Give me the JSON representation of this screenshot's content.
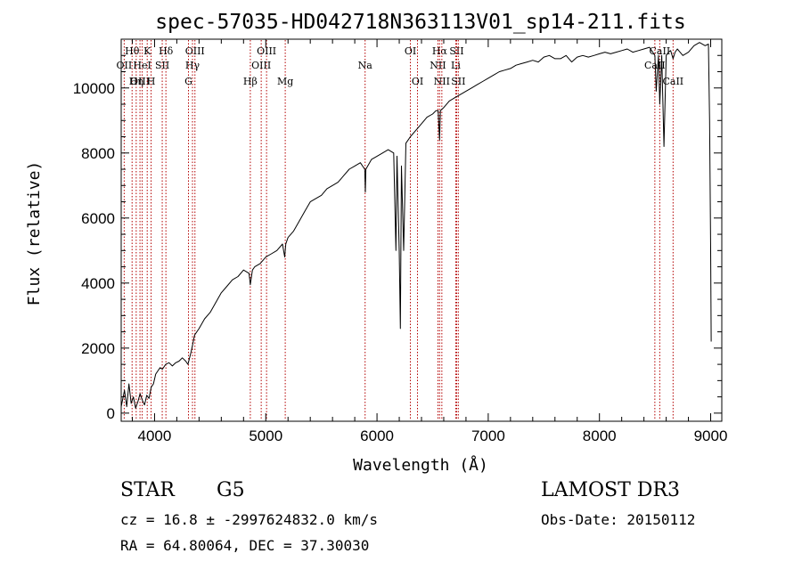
{
  "chart_data": {
    "type": "line",
    "title": "spec-57035-HD042718N363113V01_sp14-211.fits",
    "xlabel": "Wavelength (Å)",
    "ylabel": "Flux (relative)",
    "xlim": [
      3700,
      9100
    ],
    "ylim": [
      -250,
      11500
    ],
    "xticks": [
      4000,
      5000,
      6000,
      7000,
      8000,
      9000
    ],
    "yticks": [
      0,
      2000,
      4000,
      6000,
      8000,
      10000
    ],
    "grid": false,
    "series": [
      {
        "name": "spectrum",
        "x": [
          3700,
          3730,
          3750,
          3770,
          3790,
          3810,
          3830,
          3850,
          3870,
          3890,
          3910,
          3930,
          3950,
          3970,
          3990,
          4010,
          4030,
          4050,
          4070,
          4100,
          4130,
          4160,
          4190,
          4220,
          4250,
          4280,
          4300,
          4330,
          4360,
          4400,
          4450,
          4500,
          4550,
          4600,
          4650,
          4700,
          4750,
          4800,
          4850,
          4861,
          4880,
          4900,
          4950,
          5000,
          5050,
          5100,
          5150,
          5170,
          5180,
          5200,
          5250,
          5300,
          5350,
          5400,
          5450,
          5500,
          5550,
          5600,
          5650,
          5700,
          5750,
          5800,
          5850,
          5890,
          5895,
          5900,
          5950,
          6000,
          6050,
          6100,
          6150,
          6170,
          6180,
          6200,
          6210,
          6220,
          6240,
          6260,
          6280,
          6300,
          6350,
          6400,
          6450,
          6500,
          6530,
          6550,
          6563,
          6570,
          6600,
          6650,
          6700,
          6750,
          6800,
          6850,
          6900,
          6950,
          7000,
          7050,
          7100,
          7150,
          7200,
          7250,
          7300,
          7350,
          7400,
          7450,
          7500,
          7550,
          7600,
          7650,
          7700,
          7750,
          7800,
          7850,
          7900,
          7950,
          8000,
          8050,
          8100,
          8150,
          8200,
          8250,
          8300,
          8350,
          8400,
          8450,
          8498,
          8510,
          8530,
          8542,
          8560,
          8580,
          8600,
          8620,
          8640,
          8662,
          8680,
          8700,
          8750,
          8800,
          8850,
          8900,
          8950,
          8980,
          8990,
          9000,
          9005
        ],
        "y": [
          200,
          700,
          200,
          900,
          300,
          500,
          150,
          350,
          600,
          400,
          250,
          550,
          450,
          800,
          900,
          1200,
          1300,
          1400,
          1350,
          1500,
          1550,
          1450,
          1550,
          1600,
          1700,
          1600,
          1500,
          1900,
          2400,
          2600,
          2900,
          3100,
          3400,
          3700,
          3900,
          4100,
          4200,
          4400,
          4300,
          3950,
          4400,
          4500,
          4600,
          4800,
          4900,
          5000,
          5200,
          4800,
          5200,
          5400,
          5600,
          5900,
          6200,
          6500,
          6600,
          6700,
          6900,
          7000,
          7100,
          7300,
          7500,
          7600,
          7700,
          7500,
          6800,
          7500,
          7800,
          7900,
          8000,
          8100,
          8000,
          5000,
          7900,
          5000,
          2600,
          7600,
          5000,
          8300,
          8400,
          8500,
          8700,
          8900,
          9100,
          9200,
          9300,
          9300,
          8400,
          9300,
          9400,
          9600,
          9700,
          9800,
          9900,
          10000,
          10100,
          10200,
          10300,
          10400,
          10500,
          10550,
          10600,
          10700,
          10750,
          10800,
          10850,
          10800,
          10950,
          11000,
          10900,
          10900,
          11000,
          10800,
          10950,
          11000,
          10950,
          11000,
          11050,
          11100,
          11050,
          11100,
          11150,
          11200,
          11100,
          11150,
          11200,
          11250,
          11000,
          9900,
          11000,
          9500,
          11000,
          8200,
          11000,
          11100,
          11150,
          10900,
          11100,
          11200,
          11000,
          11100,
          11300,
          11400,
          11300,
          11350,
          9000,
          5000,
          2200
        ]
      }
    ],
    "line_markers": [
      {
        "name": "Hθ",
        "w": 3798,
        "row": 1
      },
      {
        "name": "OII",
        "w": 3727,
        "row": 2
      },
      {
        "name": "OIII",
        "w": 3869,
        "row": 3
      },
      {
        "name": "K",
        "w": 3934,
        "row": 1
      },
      {
        "name": "HeI",
        "w": 3889,
        "row": 2
      },
      {
        "name": "Hη",
        "w": 3835,
        "row": 3
      },
      {
        "name": "Hδ",
        "w": 4102,
        "row": 1
      },
      {
        "name": "SII",
        "w": 4069,
        "row": 2
      },
      {
        "name": "H",
        "w": 3969,
        "row": 3
      },
      {
        "name": "OIII",
        "w": 4363,
        "row": 1
      },
      {
        "name": "Hγ",
        "w": 4341,
        "row": 2
      },
      {
        "name": "G",
        "w": 4305,
        "row": 3
      },
      {
        "name": "OIII",
        "w": 5007,
        "row": 1
      },
      {
        "name": "OIII",
        "w": 4959,
        "row": 2
      },
      {
        "name": "Hβ",
        "w": 4861,
        "row": 3
      },
      {
        "name": "Mg",
        "w": 5175,
        "row": 3
      },
      {
        "name": "Na",
        "w": 5893,
        "row": 2
      },
      {
        "name": "OI",
        "w": 6300,
        "row": 1
      },
      {
        "name": "OI",
        "w": 6364,
        "row": 3
      },
      {
        "name": "Hα",
        "w": 6563,
        "row": 1
      },
      {
        "name": "SII",
        "w": 6716,
        "row": 1
      },
      {
        "name": "NII",
        "w": 6548,
        "row": 2
      },
      {
        "name": "Li",
        "w": 6708,
        "row": 2
      },
      {
        "name": "NII",
        "w": 6583,
        "row": 3
      },
      {
        "name": "SII",
        "w": 6731,
        "row": 3
      },
      {
        "name": "CaII",
        "w": 8542,
        "row": 1
      },
      {
        "name": "CaII",
        "w": 8498,
        "row": 2
      },
      {
        "name": "CaII",
        "w": 8662,
        "row": 3
      }
    ]
  },
  "info": {
    "object_class": "STAR",
    "subclass": "G5",
    "survey": "LAMOST DR3",
    "cz": "cz = 16.8 ± -2997624832.0 km/s",
    "obs_date": "Obs-Date: 20150112",
    "radec": "RA =  64.80064, DEC =  37.30030"
  },
  "colors": {
    "line": "#000000",
    "marker": "#b30000",
    "background": "#ffffff"
  }
}
